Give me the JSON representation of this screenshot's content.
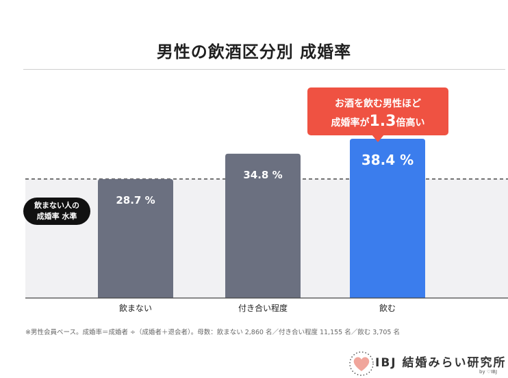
{
  "page": {
    "title": "男性の飲酒区分別 成婚率",
    "baseline_label_line1": "飲まない人の",
    "baseline_label_line2": "成婚率 水準",
    "callout_line1": "お酒を飲む男性ほど",
    "callout_line2_pre": "成婚率が",
    "callout_line2_big": "1.3",
    "callout_line2_post": "倍高い",
    "footnote": "※男性会員ベース。成婚率＝成婚者 ÷（成婚者＋退会者）。母数：飲まない 2,860 名／付き合い程度 11,155 名／飲む 3,705 名",
    "logo_text": "IBJ 結婚みらい研究所",
    "logo_sub": "by ♡IBJ"
  },
  "chart_data": {
    "type": "bar",
    "title": "男性の飲酒区分別 成婚率",
    "categories": [
      "飲まない",
      "付き合い程度",
      "飲む"
    ],
    "values": [
      28.7,
      34.8,
      38.4
    ],
    "value_labels": [
      "28.7 %",
      "34.8 %",
      "38.4 %"
    ],
    "baseline_value": 28.7,
    "ylim": [
      0,
      45
    ],
    "bar_colors": [
      "#6b7080",
      "#6b7080",
      "#3b7ded"
    ],
    "baseline_band_color": "#f1f1f3",
    "grid": false
  }
}
